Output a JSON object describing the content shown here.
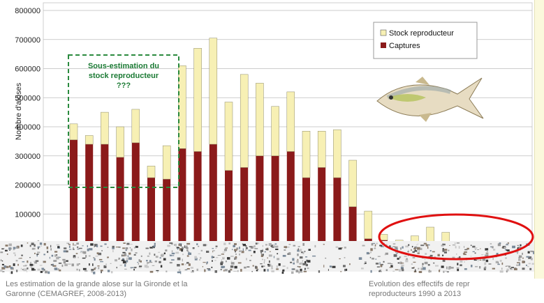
{
  "chart_data": {
    "type": "bar",
    "stacked": true,
    "ylabel": "Nombre d'aloses",
    "ylim": [
      0,
      800000
    ],
    "yticks": [
      "0",
      "100000",
      "200000",
      "300000",
      "400000",
      "500000",
      "600000",
      "700000",
      "800000"
    ],
    "grid": true,
    "legend_position": "top-right",
    "series": [
      {
        "name": "Captures",
        "color": "#8b1a1a",
        "values": [
          355000,
          340000,
          340000,
          295000,
          345000,
          225000,
          220000,
          325000,
          315000,
          340000,
          250000,
          260000,
          300000,
          300000,
          315000,
          225000,
          260000,
          225000,
          125000,
          15000,
          10000,
          2000,
          3000,
          5000,
          2000,
          0
        ]
      },
      {
        "name": "Stock reproducteur",
        "color": "#f7f0b4",
        "values": [
          55000,
          30000,
          110000,
          105000,
          115000,
          40000,
          115000,
          285000,
          355000,
          365000,
          235000,
          320000,
          250000,
          170000,
          205000,
          160000,
          125000,
          165000,
          160000,
          95000,
          20000,
          8000,
          22000,
          50000,
          35000,
          5000
        ]
      }
    ],
    "annotation": "Sous-estimation du stock reproducteur ???"
  },
  "captions": {
    "left": "Les estimation de la grande alose sur la Gironde et la",
    "left_line2": "Garonne (CEMAGREF, 2008-2013)",
    "right": "Evolution des effectifs de repr",
    "right_line2": "reproducteurs 1990 a 2013"
  },
  "colors": {
    "highlight_ellipse": "#e01010",
    "annotation_box": "#2a8a3e",
    "grid": "#bdbdbd"
  }
}
